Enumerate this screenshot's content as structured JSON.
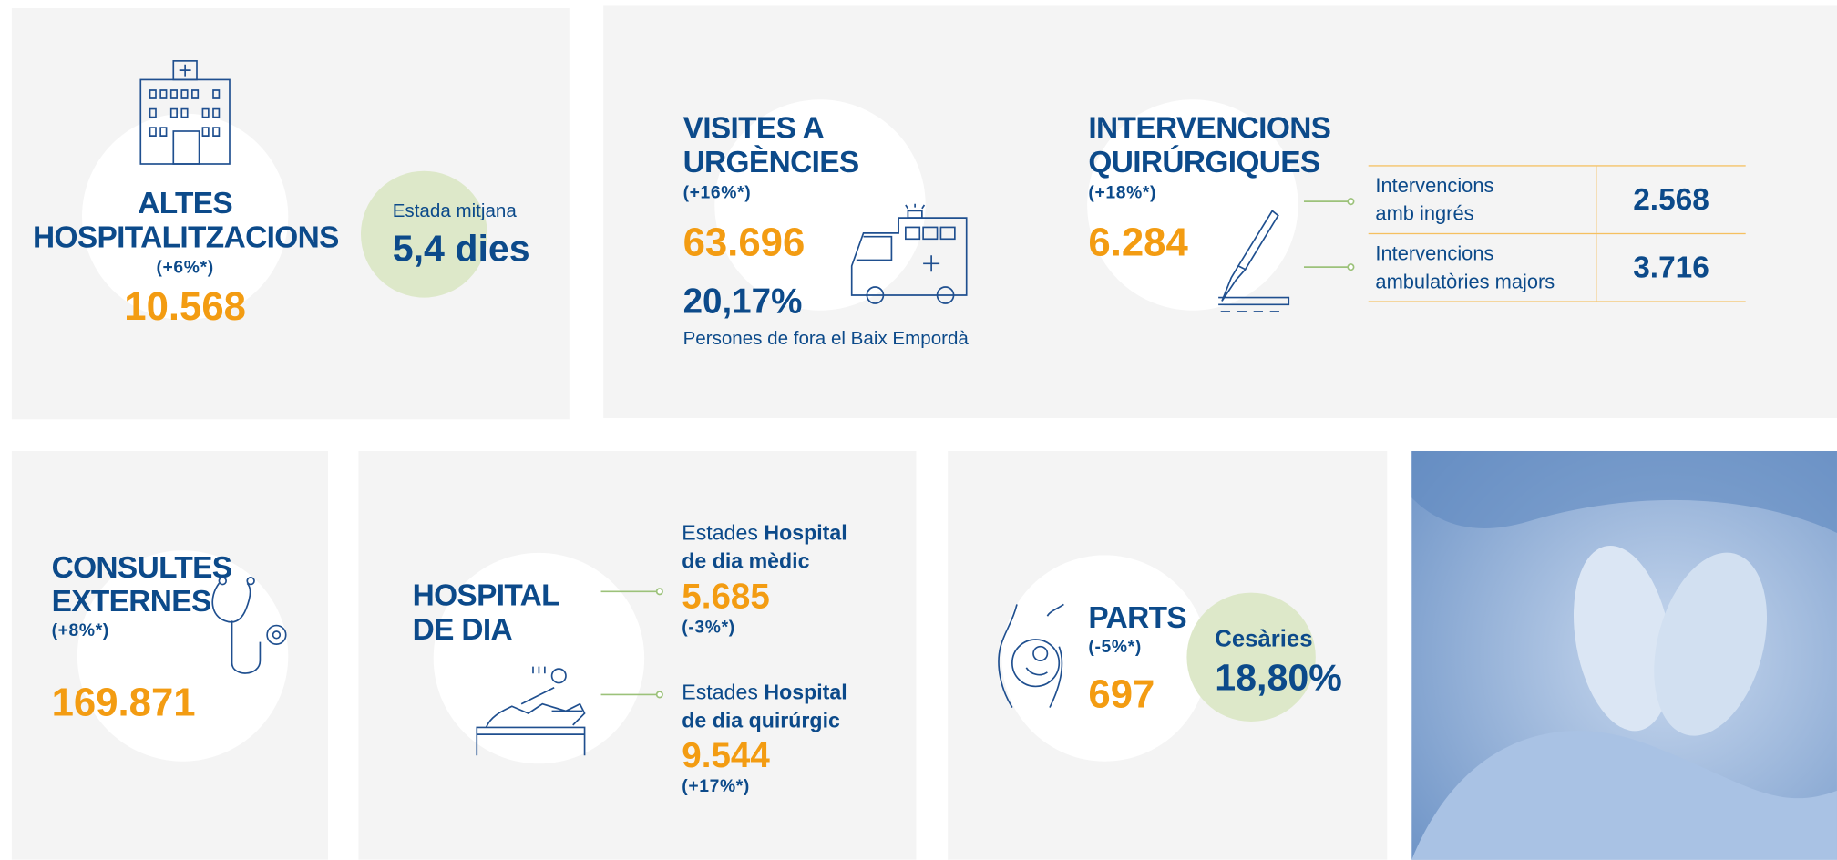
{
  "altes": {
    "title": "ALTES\nHOSPITALITZACIONS",
    "change": "(+6%*)",
    "value": "10.568",
    "stay_label": "Estada mitjana",
    "stay_value": "5,4 dies"
  },
  "urgencies": {
    "title": "VISITES A\nURGÈNCIES",
    "change": "(+16%*)",
    "value": "63.696",
    "share": "20,17%",
    "share_label": "Persones de fora el Baix Empordà"
  },
  "intervencions": {
    "title": "INTERVENCIONS\nQUIRÚRGIQUES",
    "change": "(+18%*)",
    "value": "6.284",
    "table": {
      "rows": [
        [
          "Intervencions\namb ingrés",
          "2.568"
        ],
        [
          "Intervencions\nambulatòries majors",
          "3.716"
        ]
      ]
    }
  },
  "consultes": {
    "title": "CONSULTES\nEXTERNES",
    "change": "(+8%*)",
    "value": "169.871"
  },
  "hospital_dia": {
    "title": "HOSPITAL\nDE DIA",
    "items": [
      {
        "prefix": "Estades",
        "label": "Hospital\nde dia mèdic",
        "value": "5.685",
        "change": "(-3%*)"
      },
      {
        "prefix": "Estades",
        "label": "Hospital\nde dia quirúrgic",
        "value": "9.544",
        "change": "(+17%*)"
      }
    ]
  },
  "parts": {
    "title": "PARTS",
    "change": "(-5%*)",
    "value": "697",
    "cesaries_label": "Cesàries",
    "cesaries_value": "18,80%"
  }
}
